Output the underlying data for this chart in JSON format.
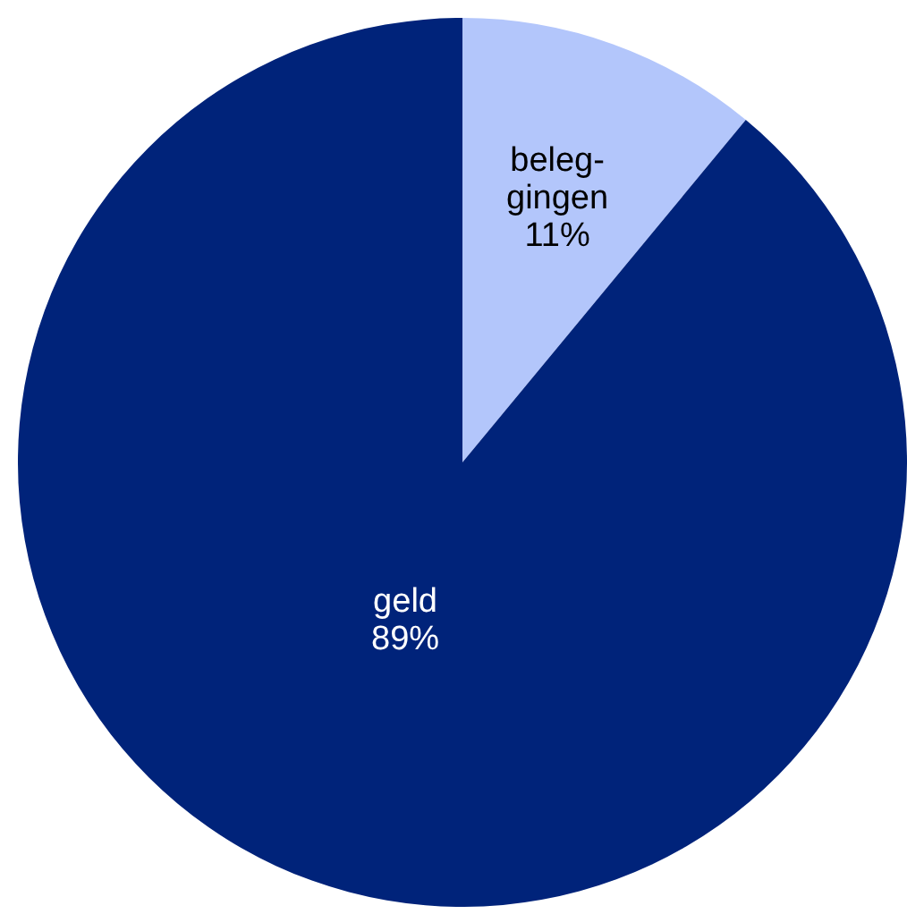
{
  "chart_data": {
    "type": "pie",
    "categories": [
      "beleg-gingen",
      "geld"
    ],
    "values": [
      11,
      89
    ],
    "colors": [
      "#b3c6fb",
      "#00237a"
    ],
    "value_labels": [
      "11%",
      "89%"
    ],
    "legend": false
  }
}
